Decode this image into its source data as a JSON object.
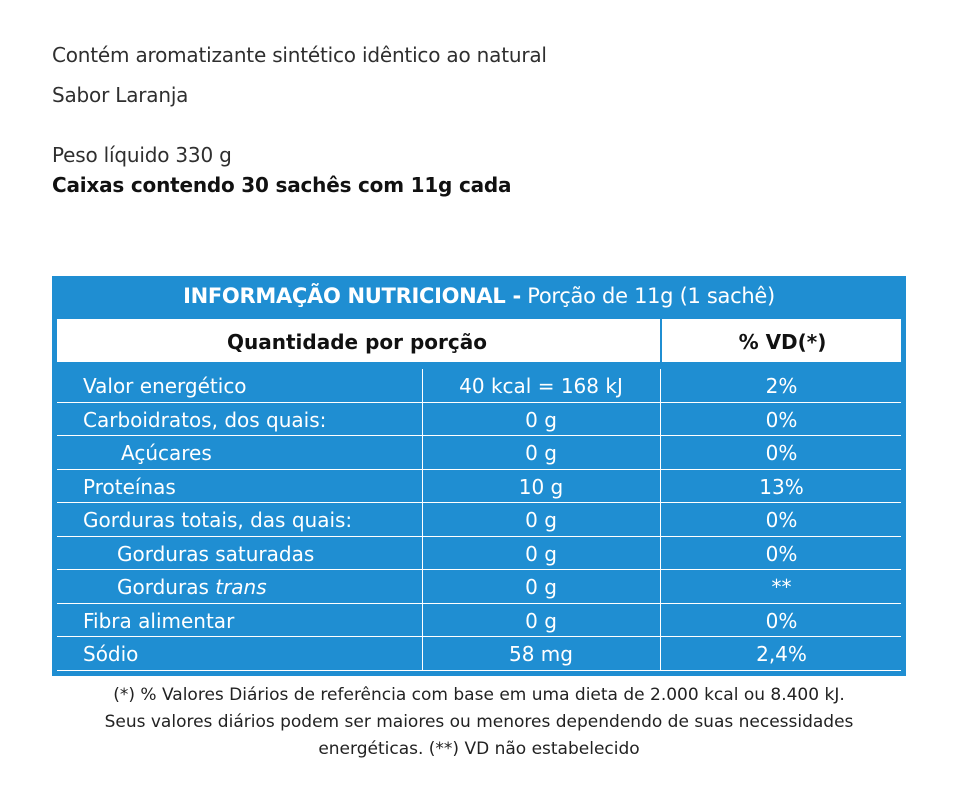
{
  "label": {
    "flavoring_note": "Contém aromatizante sintético idêntico ao natural",
    "flavor": "Sabor Laranja",
    "net_weight": "Peso líquido 330 g",
    "package": "Caixas contendo 30 sachês com 11g cada"
  },
  "nutrition": {
    "title_bold": "INFORMAÇÃO NUTRICIONAL -",
    "title_rest": " Porção de 11g (1 sachê)",
    "header_quantity": "Quantidade por porção",
    "header_vd": "% VD(*)",
    "rows": [
      {
        "name": "Valor energético",
        "amount": "40 kcal = 168 kJ",
        "vd": "2%"
      },
      {
        "name": "Carboidratos, dos quais:",
        "amount": "0 g",
        "vd": "0%"
      },
      {
        "name": "Açúcares",
        "amount": "0 g",
        "vd": "0%"
      },
      {
        "name": "Proteínas",
        "amount": "10 g",
        "vd": "13%"
      },
      {
        "name": "Gorduras totais, das quais:",
        "amount": "0 g",
        "vd": "0%"
      },
      {
        "name": "Gorduras saturadas",
        "amount": "0 g",
        "vd": "0%"
      },
      {
        "name_prefix": "Gorduras ",
        "name_italic": "trans",
        "amount": "0 g",
        "vd": "**"
      },
      {
        "name": "Fibra alimentar",
        "amount": "0 g",
        "vd": "0%"
      },
      {
        "name": "Sódio",
        "amount": "58 mg",
        "vd": "2,4%"
      }
    ]
  },
  "footnote": {
    "line1": "(*) % Valores Diários de referência com base em uma dieta de 2.000 kcal ou 8.400 kJ.",
    "line2": "Seus valores diários podem ser maiores ou menores dependendo de suas necessidades",
    "line3": "energéticas. (**) VD não estabelecido"
  },
  "colors": {
    "table_blue": "#1f8ed2"
  }
}
